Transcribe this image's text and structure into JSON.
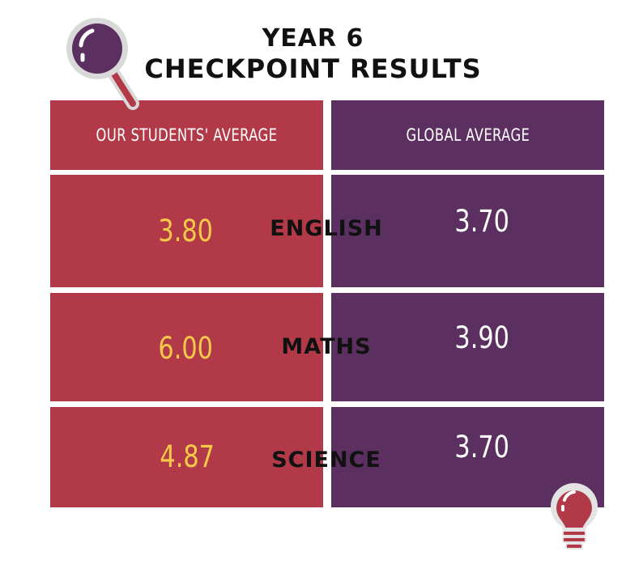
{
  "title": {
    "line1": "YEAR 6",
    "line2": "CHECKPOINT RESULTS"
  },
  "headers": {
    "ours": "OUR STUDENTS' AVERAGE",
    "global": "GLOBAL AVERAGE"
  },
  "chart_data": {
    "type": "table",
    "title": "YEAR 6 CHECKPOINT RESULTS",
    "columns": [
      "OUR STUDENTS' AVERAGE",
      "GLOBAL AVERAGE"
    ],
    "rows": [
      {
        "subject": "ENGLISH",
        "ours": "3.80",
        "global": "3.70"
      },
      {
        "subject": "MATHS",
        "ours": "6.00",
        "global": "3.90"
      },
      {
        "subject": "SCIENCE",
        "ours": "4.87",
        "global": "3.70"
      }
    ]
  },
  "colors": {
    "ours_column": "#b23a48",
    "global_column": "#5b3060",
    "ours_value": "#f7c948",
    "global_value": "#ffffff"
  },
  "icons": {
    "top_left": "magnifying-glass-icon",
    "bottom_right": "lightbulb-icon"
  }
}
